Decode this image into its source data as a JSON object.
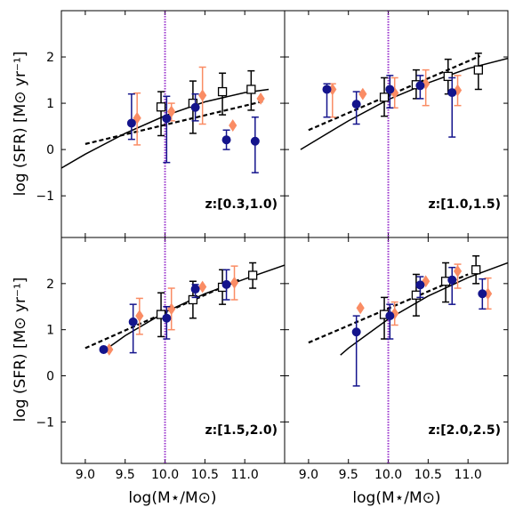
{
  "figure": {
    "ylabel": "log (SFR) [M⊙ yr⁻¹]",
    "xlabel": "log(M⋆/M⊙)"
  },
  "colors": {
    "blue": "#14148c",
    "orange": "#fa8c64",
    "black": "#000000",
    "vline": "#9933cc"
  },
  "chart_data": [
    {
      "type": "scatter",
      "label": "z:[0.3,1.0)",
      "xlim": [
        8.7,
        11.5
      ],
      "ylim": [
        -1.9,
        3.0
      ],
      "xticks": [
        "9.0",
        "9.5",
        "10.0",
        "10.5",
        "11.0"
      ],
      "yticks": [
        "−1",
        "0",
        "1",
        "2"
      ],
      "vline_x": 10.0,
      "series": [
        {
          "marker": "circle",
          "color": "blue",
          "points": [
            {
              "x": 9.58,
              "y": 0.57,
              "lo": 0.22,
              "hi": 1.2
            },
            {
              "x": 10.02,
              "y": 0.67,
              "lo": -0.28,
              "hi": 1.15
            },
            {
              "x": 10.38,
              "y": 0.91,
              "lo": 0.62,
              "hi": 1.2
            },
            {
              "x": 10.77,
              "y": 0.21,
              "lo": 0.0,
              "hi": 0.42
            },
            {
              "x": 11.13,
              "y": 0.18,
              "lo": -0.5,
              "hi": 0.7
            }
          ]
        },
        {
          "marker": "diamond",
          "color": "orange",
          "points": [
            {
              "x": 9.65,
              "y": 0.68,
              "lo": 0.1,
              "hi": 1.22
            },
            {
              "x": 10.08,
              "y": 0.82,
              "lo": 0.62,
              "hi": 1.0
            },
            {
              "x": 10.47,
              "y": 1.17,
              "lo": 0.55,
              "hi": 1.78
            },
            {
              "x": 10.85,
              "y": 0.52,
              "lo": 0.52,
              "hi": 0.52
            },
            {
              "x": 11.2,
              "y": 1.1,
              "lo": 1.1,
              "hi": 1.1
            }
          ]
        },
        {
          "marker": "square",
          "color": "black",
          "points": [
            {
              "x": 9.95,
              "y": 0.92,
              "lo": 0.3,
              "hi": 1.25
            },
            {
              "x": 10.35,
              "y": 1.0,
              "lo": 0.35,
              "hi": 1.48
            },
            {
              "x": 10.72,
              "y": 1.25,
              "lo": 0.75,
              "hi": 1.65
            },
            {
              "x": 11.08,
              "y": 1.3,
              "lo": 0.85,
              "hi": 1.7
            }
          ]
        }
      ],
      "solid_curve": [
        [
          8.7,
          -0.4
        ],
        [
          9.0,
          -0.1
        ],
        [
          9.5,
          0.35
        ],
        [
          10.0,
          0.73
        ],
        [
          10.5,
          1.03
        ],
        [
          11.0,
          1.23
        ],
        [
          11.3,
          1.3
        ]
      ],
      "dashed_line": [
        [
          9.0,
          0.12
        ],
        [
          11.25,
          1.05
        ]
      ]
    },
    {
      "type": "scatter",
      "label": "z:[1.0,1.5)",
      "xlim": [
        8.7,
        11.5
      ],
      "ylim": [
        -1.9,
        3.0
      ],
      "xticks": [
        "9.0",
        "9.5",
        "10.0",
        "10.5",
        "11.0"
      ],
      "yticks": [
        "−1",
        "0",
        "1",
        "2"
      ],
      "vline_x": 10.0,
      "series": [
        {
          "marker": "circle",
          "color": "blue",
          "points": [
            {
              "x": 9.23,
              "y": 1.3,
              "lo": 0.7,
              "hi": 1.42
            },
            {
              "x": 9.6,
              "y": 0.98,
              "lo": 0.55,
              "hi": 1.25
            },
            {
              "x": 10.02,
              "y": 1.3,
              "lo": 0.9,
              "hi": 1.6
            },
            {
              "x": 10.4,
              "y": 1.38,
              "lo": 1.1,
              "hi": 1.6
            },
            {
              "x": 10.8,
              "y": 1.23,
              "lo": 0.27,
              "hi": 1.55
            }
          ]
        },
        {
          "marker": "diamond",
          "color": "orange",
          "points": [
            {
              "x": 9.3,
              "y": 1.3,
              "lo": 0.7,
              "hi": 1.42
            },
            {
              "x": 9.68,
              "y": 1.2,
              "lo": 1.2,
              "hi": 1.2
            },
            {
              "x": 10.08,
              "y": 1.22,
              "lo": 0.9,
              "hi": 1.55
            },
            {
              "x": 10.47,
              "y": 1.42,
              "lo": 0.95,
              "hi": 1.72
            },
            {
              "x": 10.87,
              "y": 1.28,
              "lo": 0.95,
              "hi": 1.6
            }
          ]
        },
        {
          "marker": "square",
          "color": "black",
          "points": [
            {
              "x": 9.95,
              "y": 1.13,
              "lo": 0.72,
              "hi": 1.55
            },
            {
              "x": 10.35,
              "y": 1.4,
              "lo": 1.1,
              "hi": 1.72
            },
            {
              "x": 10.75,
              "y": 1.58,
              "lo": 1.2,
              "hi": 1.95
            },
            {
              "x": 11.13,
              "y": 1.72,
              "lo": 1.3,
              "hi": 2.08
            }
          ]
        }
      ],
      "solid_curve": [
        [
          8.9,
          0.0
        ],
        [
          9.5,
          0.62
        ],
        [
          10.0,
          1.08
        ],
        [
          10.5,
          1.44
        ],
        [
          11.0,
          1.75
        ],
        [
          11.5,
          1.97
        ]
      ],
      "dashed_line": [
        [
          9.0,
          0.42
        ],
        [
          11.15,
          2.02
        ]
      ]
    },
    {
      "type": "scatter",
      "label": "z:[1.5,2.0)",
      "xlim": [
        8.7,
        11.5
      ],
      "ylim": [
        -1.9,
        3.0
      ],
      "xticks": [
        "9.0",
        "9.5",
        "10.0",
        "10.5",
        "11.0"
      ],
      "yticks": [
        "−1",
        "0",
        "1",
        "2"
      ],
      "vline_x": 10.0,
      "series": [
        {
          "marker": "circle",
          "color": "blue",
          "points": [
            {
              "x": 9.23,
              "y": 0.57,
              "lo": 0.57,
              "hi": 0.57
            },
            {
              "x": 9.6,
              "y": 1.17,
              "lo": 0.5,
              "hi": 1.55
            },
            {
              "x": 10.02,
              "y": 1.25,
              "lo": 0.8,
              "hi": 1.5
            },
            {
              "x": 10.38,
              "y": 1.88,
              "lo": 1.7,
              "hi": 1.98
            },
            {
              "x": 10.77,
              "y": 1.98,
              "lo": 1.65,
              "hi": 2.3
            }
          ]
        },
        {
          "marker": "diamond",
          "color": "orange",
          "points": [
            {
              "x": 9.3,
              "y": 0.57,
              "lo": 0.57,
              "hi": 0.57
            },
            {
              "x": 9.68,
              "y": 1.3,
              "lo": 0.9,
              "hi": 1.68
            },
            {
              "x": 10.08,
              "y": 1.45,
              "lo": 1.0,
              "hi": 1.9
            },
            {
              "x": 10.47,
              "y": 1.93,
              "lo": 1.93,
              "hi": 1.93
            },
            {
              "x": 10.87,
              "y": 2.02,
              "lo": 1.65,
              "hi": 2.38
            }
          ]
        },
        {
          "marker": "square",
          "color": "black",
          "points": [
            {
              "x": 9.95,
              "y": 1.33,
              "lo": 0.85,
              "hi": 1.8
            },
            {
              "x": 10.35,
              "y": 1.65,
              "lo": 1.25,
              "hi": 2.05
            },
            {
              "x": 10.72,
              "y": 1.92,
              "lo": 1.55,
              "hi": 2.3
            },
            {
              "x": 11.1,
              "y": 2.18,
              "lo": 1.9,
              "hi": 2.45
            }
          ]
        }
      ],
      "solid_curve": [
        [
          9.2,
          0.5
        ],
        [
          9.5,
          0.87
        ],
        [
          10.0,
          1.38
        ],
        [
          10.5,
          1.78
        ],
        [
          11.0,
          2.1
        ],
        [
          11.5,
          2.4
        ]
      ],
      "dashed_line": [
        [
          9.0,
          0.6
        ],
        [
          10.95,
          2.1
        ]
      ]
    },
    {
      "type": "scatter",
      "label": "z:[2.0,2.5)",
      "xlim": [
        8.7,
        11.5
      ],
      "ylim": [
        -1.9,
        3.0
      ],
      "xticks": [
        "9.0",
        "9.5",
        "10.0",
        "10.5",
        "11.0"
      ],
      "yticks": [
        "−1",
        "0",
        "1",
        "2"
      ],
      "vline_x": 10.0,
      "series": [
        {
          "marker": "circle",
          "color": "blue",
          "points": [
            {
              "x": 9.6,
              "y": 0.95,
              "lo": -0.22,
              "hi": 1.3
            },
            {
              "x": 10.02,
              "y": 1.3,
              "lo": 0.8,
              "hi": 1.55
            },
            {
              "x": 10.4,
              "y": 1.97,
              "lo": 1.7,
              "hi": 2.15
            },
            {
              "x": 10.8,
              "y": 2.08,
              "lo": 1.55,
              "hi": 2.35
            },
            {
              "x": 11.18,
              "y": 1.78,
              "lo": 1.45,
              "hi": 2.1
            }
          ]
        },
        {
          "marker": "diamond",
          "color": "orange",
          "points": [
            {
              "x": 9.65,
              "y": 1.47,
              "lo": 1.47,
              "hi": 1.47
            },
            {
              "x": 10.08,
              "y": 1.35,
              "lo": 1.1,
              "hi": 1.6
            },
            {
              "x": 10.47,
              "y": 2.05,
              "lo": 2.05,
              "hi": 2.05
            },
            {
              "x": 10.87,
              "y": 2.27,
              "lo": 1.9,
              "hi": 2.42
            },
            {
              "x": 11.25,
              "y": 1.78,
              "lo": 1.45,
              "hi": 2.12
            }
          ]
        },
        {
          "marker": "square",
          "color": "black",
          "points": [
            {
              "x": 9.95,
              "y": 1.33,
              "lo": 0.8,
              "hi": 1.7
            },
            {
              "x": 10.35,
              "y": 1.75,
              "lo": 1.3,
              "hi": 2.2
            },
            {
              "x": 10.72,
              "y": 2.05,
              "lo": 1.6,
              "hi": 2.45
            },
            {
              "x": 11.1,
              "y": 2.3,
              "lo": 2.0,
              "hi": 2.6
            }
          ]
        }
      ],
      "solid_curve": [
        [
          9.4,
          0.45
        ],
        [
          9.5,
          0.6
        ],
        [
          10.0,
          1.23
        ],
        [
          10.5,
          1.73
        ],
        [
          11.0,
          2.13
        ],
        [
          11.5,
          2.45
        ]
      ],
      "dashed_line": [
        [
          9.0,
          0.72
        ],
        [
          11.0,
          2.2
        ]
      ]
    }
  ]
}
